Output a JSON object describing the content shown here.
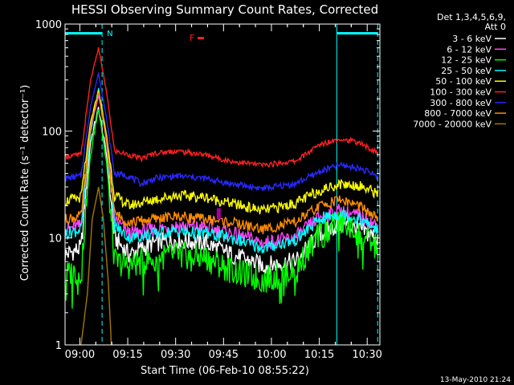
{
  "chart_data": {
    "type": "line",
    "title": "HESSI Observing Summary Count Rates, Corrected",
    "xlabel": "Start Time (06-Feb-10 08:55:22)",
    "ylabel": "Corrected Count Rate (s⁻¹ detector⁻¹)",
    "y_scale": "log",
    "ylim": [
      1,
      1000
    ],
    "y_ticks": [
      {
        "value": 1,
        "label": "1"
      },
      {
        "value": 10,
        "label": "10"
      },
      {
        "value": 100,
        "label": "100"
      },
      {
        "value": 1000,
        "label": "1000"
      }
    ],
    "x_ticks": [
      "09:00",
      "09:15",
      "09:30",
      "09:45",
      "10:00",
      "10:15",
      "10:30"
    ],
    "x_tick_minutes": [
      4.63,
      19.63,
      34.63,
      49.63,
      64.63,
      79.63,
      94.63
    ],
    "x_range_minutes": [
      0,
      98.6
    ],
    "legend_header": [
      "Det 1,3,4,5,6,9,",
      "Att 0"
    ],
    "legend_position": "right",
    "series": [
      {
        "name": "3 - 6 keV",
        "color": "#ffffff",
        "points": [
          [
            0,
            7
          ],
          [
            5,
            8
          ],
          [
            8,
            80
          ],
          [
            10.5,
            165
          ],
          [
            13,
            60
          ],
          [
            15.5,
            10
          ],
          [
            20,
            7
          ],
          [
            28,
            9
          ],
          [
            35,
            9.5
          ],
          [
            44,
            9
          ],
          [
            52,
            7
          ],
          [
            62,
            5.5
          ],
          [
            72,
            6
          ],
          [
            80,
            11
          ],
          [
            86,
            13.5
          ],
          [
            92,
            12
          ],
          [
            98,
            10
          ]
        ]
      },
      {
        "name": "6 - 12 keV",
        "color": "#ff44ff",
        "points": [
          [
            0,
            12
          ],
          [
            5,
            13
          ],
          [
            8,
            100
          ],
          [
            10.5,
            220
          ],
          [
            13,
            80
          ],
          [
            15.5,
            15
          ],
          [
            20,
            11
          ],
          [
            28,
            12
          ],
          [
            35,
            13
          ],
          [
            44,
            12.5
          ],
          [
            52,
            11
          ],
          [
            62,
            9
          ],
          [
            72,
            10
          ],
          [
            80,
            16
          ],
          [
            86,
            18
          ],
          [
            92,
            16
          ],
          [
            98,
            13
          ]
        ]
      },
      {
        "name": "12 - 25 keV",
        "color": "#00ff00",
        "points": [
          [
            0,
            4.5
          ],
          [
            5,
            5
          ],
          [
            8,
            60
          ],
          [
            10.5,
            170
          ],
          [
            13,
            50
          ],
          [
            15.5,
            6
          ],
          [
            20,
            5.5
          ],
          [
            28,
            6.5
          ],
          [
            35,
            7
          ],
          [
            44,
            6.5
          ],
          [
            52,
            5
          ],
          [
            62,
            4
          ],
          [
            72,
            5
          ],
          [
            80,
            11
          ],
          [
            86,
            14
          ],
          [
            92,
            11
          ],
          [
            98,
            8
          ]
        ]
      },
      {
        "name": "25 - 50 keV",
        "color": "#00ffff",
        "points": [
          [
            0,
            11
          ],
          [
            5,
            12
          ],
          [
            8,
            100
          ],
          [
            10.5,
            250
          ],
          [
            13,
            90
          ],
          [
            15.5,
            13
          ],
          [
            20,
            10
          ],
          [
            28,
            11
          ],
          [
            35,
            11.5
          ],
          [
            44,
            11
          ],
          [
            52,
            10
          ],
          [
            62,
            8
          ],
          [
            72,
            9.5
          ],
          [
            80,
            15
          ],
          [
            86,
            17
          ],
          [
            92,
            15
          ],
          [
            98,
            12
          ]
        ]
      },
      {
        "name": "50 - 100 keV",
        "color": "#ffff00",
        "points": [
          [
            0,
            22
          ],
          [
            5,
            24
          ],
          [
            8,
            120
          ],
          [
            10.5,
            240
          ],
          [
            13,
            90
          ],
          [
            15.5,
            25
          ],
          [
            20,
            20
          ],
          [
            28,
            23
          ],
          [
            35,
            25
          ],
          [
            44,
            24
          ],
          [
            52,
            21
          ],
          [
            62,
            18
          ],
          [
            72,
            21
          ],
          [
            80,
            28
          ],
          [
            86,
            32
          ],
          [
            92,
            31
          ],
          [
            98,
            26
          ]
        ]
      },
      {
        "name": "100 - 300 keV",
        "color": "#ff2020",
        "points": [
          [
            0,
            58
          ],
          [
            5,
            60
          ],
          [
            8,
            300
          ],
          [
            10.5,
            600
          ],
          [
            13,
            230
          ],
          [
            15.5,
            65
          ],
          [
            20,
            60
          ],
          [
            24,
            55
          ],
          [
            28,
            62
          ],
          [
            35,
            65
          ],
          [
            44,
            60
          ],
          [
            52,
            52
          ],
          [
            62,
            48
          ],
          [
            72,
            52
          ],
          [
            80,
            75
          ],
          [
            86,
            85
          ],
          [
            92,
            78
          ],
          [
            98,
            62
          ]
        ]
      },
      {
        "name": "300 - 800 keV",
        "color": "#2828ff",
        "points": [
          [
            0,
            36
          ],
          [
            5,
            38
          ],
          [
            8,
            170
          ],
          [
            10.5,
            350
          ],
          [
            13,
            130
          ],
          [
            15.5,
            40
          ],
          [
            20,
            38
          ],
          [
            24,
            32
          ],
          [
            28,
            36
          ],
          [
            35,
            38
          ],
          [
            44,
            36
          ],
          [
            52,
            32
          ],
          [
            62,
            29
          ],
          [
            72,
            32
          ],
          [
            80,
            42
          ],
          [
            86,
            48
          ],
          [
            92,
            45
          ],
          [
            98,
            38
          ]
        ]
      },
      {
        "name": "800 - 7000 keV",
        "color": "#ff8c00",
        "points": [
          [
            0,
            15
          ],
          [
            5,
            16
          ],
          [
            8,
            110
          ],
          [
            10.5,
            230
          ],
          [
            13,
            80
          ],
          [
            15.5,
            17
          ],
          [
            20,
            14
          ],
          [
            28,
            15
          ],
          [
            35,
            16
          ],
          [
            44,
            15
          ],
          [
            52,
            14
          ],
          [
            62,
            12
          ],
          [
            72,
            14
          ],
          [
            80,
            20
          ],
          [
            86,
            23
          ],
          [
            92,
            20
          ],
          [
            98,
            15
          ]
        ]
      },
      {
        "name": "7000 - 20000 keV",
        "color": "#a07800",
        "points": [
          [
            5,
            1
          ],
          [
            7,
            3
          ],
          [
            8.5,
            15
          ],
          [
            10.5,
            30
          ],
          [
            12,
            15
          ],
          [
            13.5,
            4
          ],
          [
            14.5,
            1
          ]
        ]
      }
    ],
    "annotations": [
      {
        "text": "N",
        "color": "#00ffff"
      },
      {
        "text": "F",
        "color": "#ff2020"
      }
    ],
    "timestamp": "13-May-2010 21:24"
  }
}
